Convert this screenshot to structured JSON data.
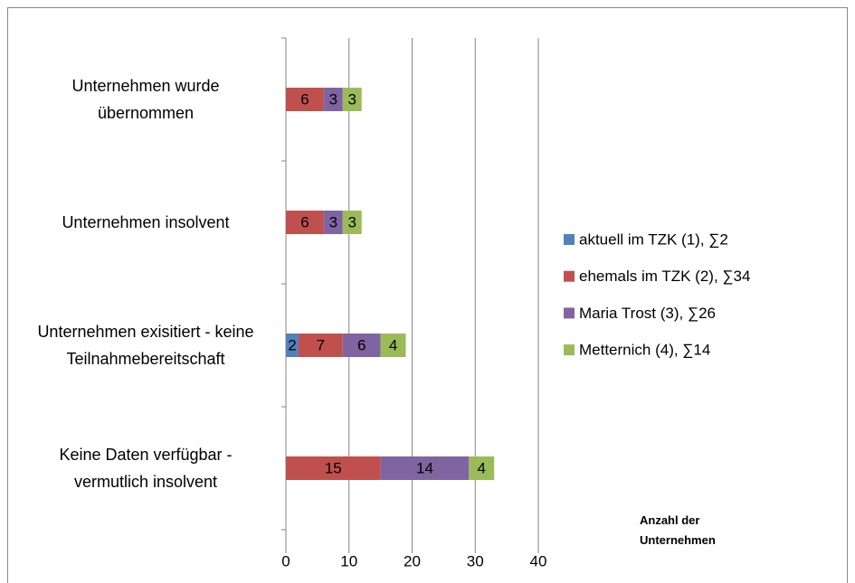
{
  "chart_data": {
    "type": "stacked_barh",
    "categories": [
      "Unternehmen wurde übernommen",
      "Unternehmen insolvent",
      "Unternehmen exisitiert - keine Teilnahmebereitschaft",
      "Keine Daten verfügbar - vermutlich insolvent"
    ],
    "series": [
      {
        "name": "aktuell im TZK (1), ∑2",
        "color": "#4f81bd",
        "values": [
          0,
          0,
          2,
          0
        ]
      },
      {
        "name": "ehemals im TZK (2), ∑34",
        "color": "#c0504d",
        "values": [
          6,
          6,
          7,
          15
        ]
      },
      {
        "name": "Maria Trost (3), ∑26",
        "color": "#8064a2",
        "values": [
          3,
          3,
          6,
          14
        ]
      },
      {
        "name": "Metternich (4), ∑14",
        "color": "#9bbb59",
        "values": [
          3,
          3,
          4,
          4
        ]
      }
    ],
    "xlim": [
      0,
      40
    ],
    "xticks": [
      0,
      10,
      20,
      30,
      40
    ],
    "grid": true,
    "legend": "right",
    "xlabel": "Anzahl der Unternehmen"
  }
}
